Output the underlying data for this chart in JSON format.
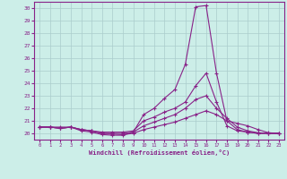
{
  "xlabel": "Windchill (Refroidissement éolien,°C)",
  "bg_color": "#cceee8",
  "line_color": "#882288",
  "grid_color": "#aacccc",
  "ylim": [
    19.5,
    30.5
  ],
  "xlim": [
    -0.5,
    23.5
  ],
  "yticks": [
    20,
    21,
    22,
    23,
    24,
    25,
    26,
    27,
    28,
    29,
    30
  ],
  "xticks": [
    0,
    1,
    2,
    3,
    4,
    5,
    6,
    7,
    8,
    9,
    10,
    11,
    12,
    13,
    14,
    15,
    16,
    17,
    18,
    19,
    20,
    21,
    22,
    23
  ],
  "line1_x": [
    0,
    1,
    2,
    3,
    4,
    5,
    6,
    7,
    8,
    9,
    10,
    11,
    12,
    13,
    14,
    15,
    16,
    17,
    18,
    19,
    20,
    21,
    22,
    23
  ],
  "line1_y": [
    20.5,
    20.5,
    20.5,
    20.5,
    20.2,
    20.1,
    19.9,
    19.85,
    19.85,
    20.1,
    21.5,
    22.0,
    22.8,
    23.5,
    25.5,
    30.1,
    30.2,
    24.8,
    21.0,
    20.3,
    20.1,
    20.0,
    20.0,
    20.0
  ],
  "line2_x": [
    0,
    1,
    2,
    3,
    4,
    5,
    6,
    7,
    8,
    9,
    10,
    11,
    12,
    13,
    14,
    15,
    16,
    17,
    18,
    19,
    20,
    21,
    22,
    23
  ],
  "line2_y": [
    20.5,
    20.5,
    20.4,
    20.5,
    20.3,
    20.2,
    20.1,
    20.1,
    20.1,
    20.2,
    21.0,
    21.3,
    21.7,
    22.0,
    22.5,
    23.8,
    24.8,
    22.5,
    20.6,
    20.2,
    20.1,
    20.0,
    20.0,
    20.0
  ],
  "line3_x": [
    0,
    1,
    2,
    3,
    4,
    5,
    6,
    7,
    8,
    9,
    10,
    11,
    12,
    13,
    14,
    15,
    16,
    17,
    18,
    19,
    20,
    21,
    22,
    23
  ],
  "line3_y": [
    20.5,
    20.5,
    20.4,
    20.5,
    20.3,
    20.2,
    20.0,
    20.0,
    20.0,
    20.1,
    20.6,
    20.9,
    21.2,
    21.5,
    22.0,
    22.7,
    23.0,
    22.0,
    21.2,
    20.5,
    20.2,
    20.05,
    20.0,
    20.0
  ],
  "line4_x": [
    0,
    1,
    2,
    3,
    4,
    5,
    6,
    7,
    8,
    9,
    10,
    11,
    12,
    13,
    14,
    15,
    16,
    17,
    18,
    19,
    20,
    21,
    22,
    23
  ],
  "line4_y": [
    20.5,
    20.5,
    20.4,
    20.5,
    20.3,
    20.2,
    20.0,
    19.95,
    19.9,
    20.0,
    20.3,
    20.5,
    20.7,
    20.9,
    21.2,
    21.5,
    21.8,
    21.5,
    21.0,
    20.8,
    20.6,
    20.3,
    20.05,
    20.0
  ]
}
